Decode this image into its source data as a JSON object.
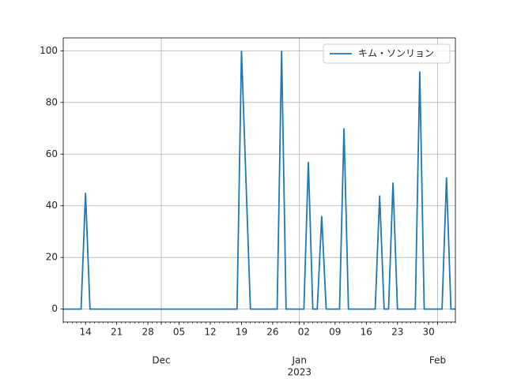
{
  "chart_data": {
    "type": "line",
    "x": [
      "2022-11-09",
      "2022-11-13",
      "2022-11-14",
      "2022-11-15",
      "2022-12-18",
      "2022-12-19",
      "2022-12-21",
      "2022-12-27",
      "2022-12-28",
      "2022-12-29",
      "2023-01-02",
      "2023-01-03",
      "2023-01-04",
      "2023-01-05",
      "2023-01-06",
      "2023-01-07",
      "2023-01-10",
      "2023-01-11",
      "2023-01-12",
      "2023-01-18",
      "2023-01-19",
      "2023-01-20",
      "2023-01-21",
      "2023-01-22",
      "2023-01-23",
      "2023-01-27",
      "2023-01-28",
      "2023-01-29",
      "2023-02-02",
      "2023-02-03",
      "2023-02-04",
      "2023-02-05"
    ],
    "series": [
      {
        "name": "キム・ソンリョン",
        "color": "#1f77b4",
        "values": [
          0,
          0,
          45,
          0,
          0,
          100,
          0,
          0,
          100,
          0,
          0,
          57,
          0,
          0,
          36,
          0,
          0,
          70,
          0,
          0,
          44,
          0,
          0,
          49,
          0,
          0,
          92,
          0,
          0,
          51,
          0,
          0
        ]
      }
    ],
    "xlim": [
      "2022-11-09",
      "2023-02-05"
    ],
    "xticks": [
      {
        "value": "2022-11-14",
        "label": "14"
      },
      {
        "value": "2022-11-21",
        "label": "21"
      },
      {
        "value": "2022-11-28",
        "label": "28"
      },
      {
        "value": "2022-12-05",
        "label": "05"
      },
      {
        "value": "2022-12-12",
        "label": "12"
      },
      {
        "value": "2022-12-19",
        "label": "19"
      },
      {
        "value": "2022-12-26",
        "label": "26"
      },
      {
        "value": "2023-01-02",
        "label": "02"
      },
      {
        "value": "2023-01-09",
        "label": "09"
      },
      {
        "value": "2023-01-16",
        "label": "16"
      },
      {
        "value": "2023-01-23",
        "label": "23"
      },
      {
        "value": "2023-01-30",
        "label": "30"
      }
    ],
    "month_ticks": [
      {
        "value": "2022-12-01",
        "label": "Dec"
      },
      {
        "value": "2023-01-01",
        "label": "Jan"
      },
      {
        "value": "2023-02-01",
        "label": "Feb"
      }
    ],
    "year_label": "2023",
    "ylim": [
      -5,
      105
    ],
    "yticks": [
      0,
      20,
      40,
      60,
      80,
      100
    ],
    "grid": true,
    "legend": "upper right"
  }
}
